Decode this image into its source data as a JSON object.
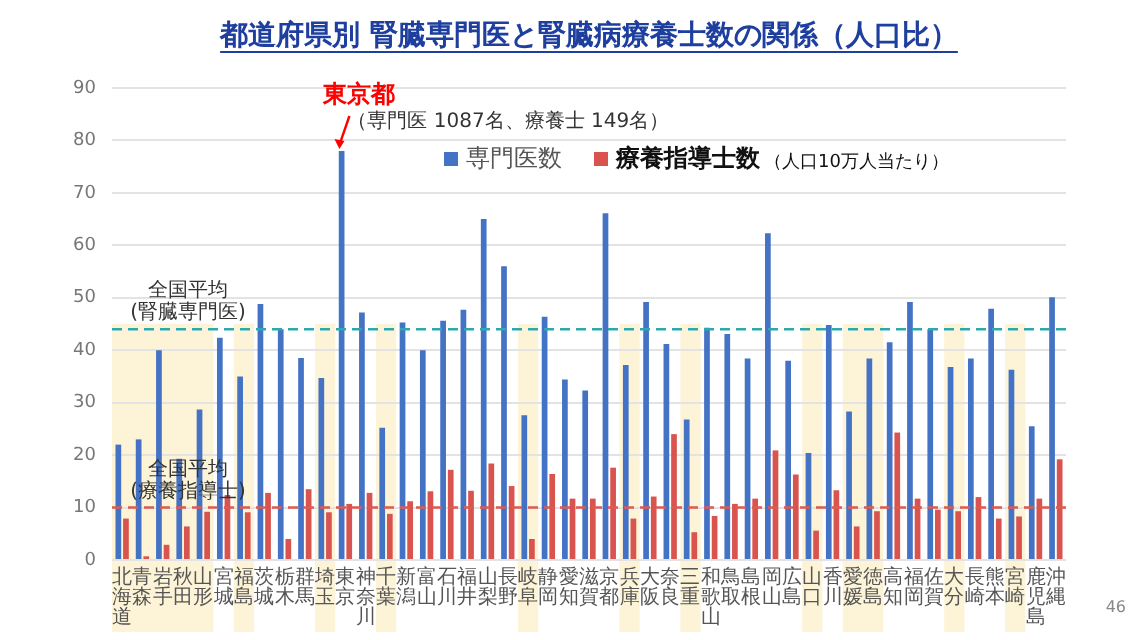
{
  "chart_data": {
    "type": "bar",
    "title": "都道府県別 腎臓専門医と腎臓病療養士数の関係（人口比）",
    "categories": [
      "北海道",
      "青森",
      "岩手",
      "秋田",
      "山形",
      "宮城",
      "福島",
      "茨城",
      "栃木",
      "群馬",
      "埼玉",
      "東京",
      "神奈川",
      "千葉",
      "新潟",
      "富山",
      "石川",
      "福井",
      "山梨",
      "長野",
      "岐阜",
      "静岡",
      "愛知",
      "滋賀",
      "京都",
      "兵庫",
      "大阪",
      "奈良",
      "三重",
      "和歌山",
      "鳥取",
      "島根",
      "岡山",
      "広島",
      "山口",
      "香川",
      "愛媛",
      "徳島",
      "高知",
      "福岡",
      "佐賀",
      "大分",
      "長崎",
      "熊本",
      "宮崎",
      "鹿児島",
      "沖縄"
    ],
    "series": [
      {
        "name": "専門医数",
        "color": "#4472c4",
        "values": [
          22,
          23,
          40,
          19.3,
          28.7,
          42.4,
          35,
          48.8,
          44,
          38.5,
          34.7,
          78,
          47.2,
          25.2,
          45.3,
          40,
          45.6,
          47.7,
          65,
          56,
          27.6,
          46.4,
          34.4,
          32.3,
          66.1,
          37.2,
          49.2,
          41.2,
          26.8,
          44.3,
          43.1,
          38.4,
          62.3,
          38,
          20.4,
          44.8,
          28.3,
          38.4,
          41.5,
          49.2,
          44,
          36.8,
          38.4,
          47.9,
          36.3,
          25.5,
          50.1
        ]
      },
      {
        "name": "療養指導士数",
        "color": "#d9534f",
        "values": [
          7.9,
          0.7,
          2.9,
          6.4,
          9.2,
          12.4,
          9.1,
          12.8,
          4,
          13.5,
          9.1,
          10.7,
          12.8,
          8.8,
          11.2,
          13.1,
          17.2,
          13.2,
          18.4,
          14.1,
          4,
          16.4,
          11.7,
          11.7,
          17.6,
          7.9,
          12.1,
          24,
          5.3,
          8.4,
          10.7,
          11.7,
          20.9,
          16.3,
          5.6,
          13.3,
          6.4,
          9.3,
          24.3,
          11.7,
          9.6,
          9.3,
          12,
          7.9,
          8.3,
          11.7,
          19.2
        ]
      }
    ],
    "ylim": [
      0,
      90
    ],
    "yticks": [
      0,
      10,
      20,
      30,
      40,
      50,
      60,
      70,
      80,
      90
    ],
    "grid": "y",
    "legend": "top right",
    "ref_lines": [
      {
        "axis": "y",
        "value": 44,
        "label": "全国平均\n(腎臓専門医)",
        "color": "#2ca8b0",
        "line_style": "dashed"
      },
      {
        "axis": "y",
        "value": 10,
        "label": "全国平均\n(療養指導士)",
        "color": "#e05a4f",
        "line_style": "dashed"
      }
    ],
    "bands": [
      {
        "axis": "x",
        "from": "北海道",
        "to": "山形",
        "color": "#fdf3d6"
      },
      {
        "axis": "x",
        "from": "福島",
        "to": "福島",
        "color": "#fdf3d6"
      },
      {
        "axis": "x",
        "from": "埼玉",
        "to": "埼玉",
        "color": "#fdf3d6"
      },
      {
        "axis": "x",
        "from": "千葉",
        "to": "千葉",
        "color": "#fdf3d6"
      },
      {
        "axis": "x",
        "from": "岐阜",
        "to": "岐阜",
        "color": "#fdf3d6"
      },
      {
        "axis": "x",
        "from": "兵庫",
        "to": "兵庫",
        "color": "#fdf3d6"
      },
      {
        "axis": "x",
        "from": "三重",
        "to": "三重",
        "color": "#fdf3d6"
      },
      {
        "axis": "x",
        "from": "山口",
        "to": "山口",
        "color": "#fdf3d6"
      },
      {
        "axis": "x",
        "from": "愛媛",
        "to": "徳島",
        "color": "#fdf3d6"
      },
      {
        "axis": "x",
        "from": "大分",
        "to": "大分",
        "color": "#fdf3d6"
      },
      {
        "axis": "x",
        "from": "宮崎",
        "to": "宮崎",
        "color": "#fdf3d6"
      }
    ],
    "annotations": [
      {
        "text": "東京都",
        "x": "東京",
        "y": 78
      },
      "（専門医 1087名、療養士 149名）",
      "（人口10万人当たり）",
      "46"
    ]
  }
}
